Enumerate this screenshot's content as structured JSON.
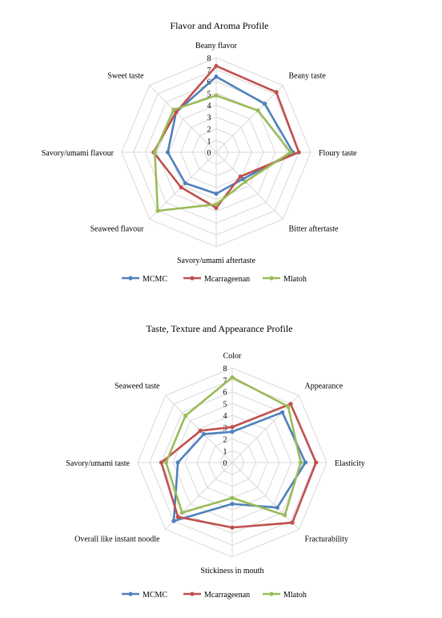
{
  "chart_data": [
    {
      "type": "radar",
      "title": "Flavor and Aroma Profile",
      "axes": [
        "Beany flavor",
        "Beany taste",
        "Floury taste",
        "Bitter aftertaste",
        "Savory/umami aftertaste",
        "Seaweed flavour",
        "Savory/umami flavour",
        "Sweet taste"
      ],
      "ticks": [
        "0",
        "1",
        "2",
        "3",
        "4",
        "5",
        "6",
        "7",
        "8"
      ],
      "rmax": 8,
      "grid": true,
      "legend_position": "bottom",
      "series": [
        {
          "name": "MCMC",
          "color": "#4F81BD",
          "values": [
            6.4,
            5.8,
            6.5,
            3.2,
            3.5,
            3.7,
            4.1,
            4.8
          ]
        },
        {
          "name": "Mcarrageenan",
          "color": "#C0504D",
          "values": [
            7.3,
            7.2,
            7.0,
            2.9,
            4.7,
            4.2,
            5.3,
            4.8
          ]
        },
        {
          "name": "Mlatoh",
          "color": "#9BBB59",
          "values": [
            4.8,
            5.0,
            6.3,
            3.5,
            4.4,
            7.0,
            5.2,
            5.1
          ]
        }
      ]
    },
    {
      "type": "radar",
      "title": "Taste, Texture and Appearance Profile",
      "axes": [
        "Color",
        "Appearance",
        "Elasticity",
        "Fracturability",
        "Stickiness in mouth",
        "Overall like instant noodle",
        "Savory/umami taste",
        "Seaweed taste"
      ],
      "ticks": [
        "0",
        "1",
        "2",
        "3",
        "4",
        "5",
        "6",
        "7",
        "8"
      ],
      "rmax": 8,
      "grid": true,
      "legend_position": "bottom",
      "series": [
        {
          "name": "MCMC",
          "color": "#4F81BD",
          "values": [
            2.6,
            6.0,
            6.2,
            5.4,
            3.5,
            7.0,
            4.6,
            3.4
          ]
        },
        {
          "name": "Mcarrageenan",
          "color": "#C0504D",
          "values": [
            3.0,
            7.0,
            7.1,
            7.2,
            5.5,
            6.5,
            6.0,
            3.8
          ]
        },
        {
          "name": "Mlatoh",
          "color": "#9BBB59",
          "values": [
            7.2,
            6.7,
            5.8,
            6.3,
            3.0,
            6.0,
            5.6,
            5.6
          ]
        }
      ]
    }
  ]
}
